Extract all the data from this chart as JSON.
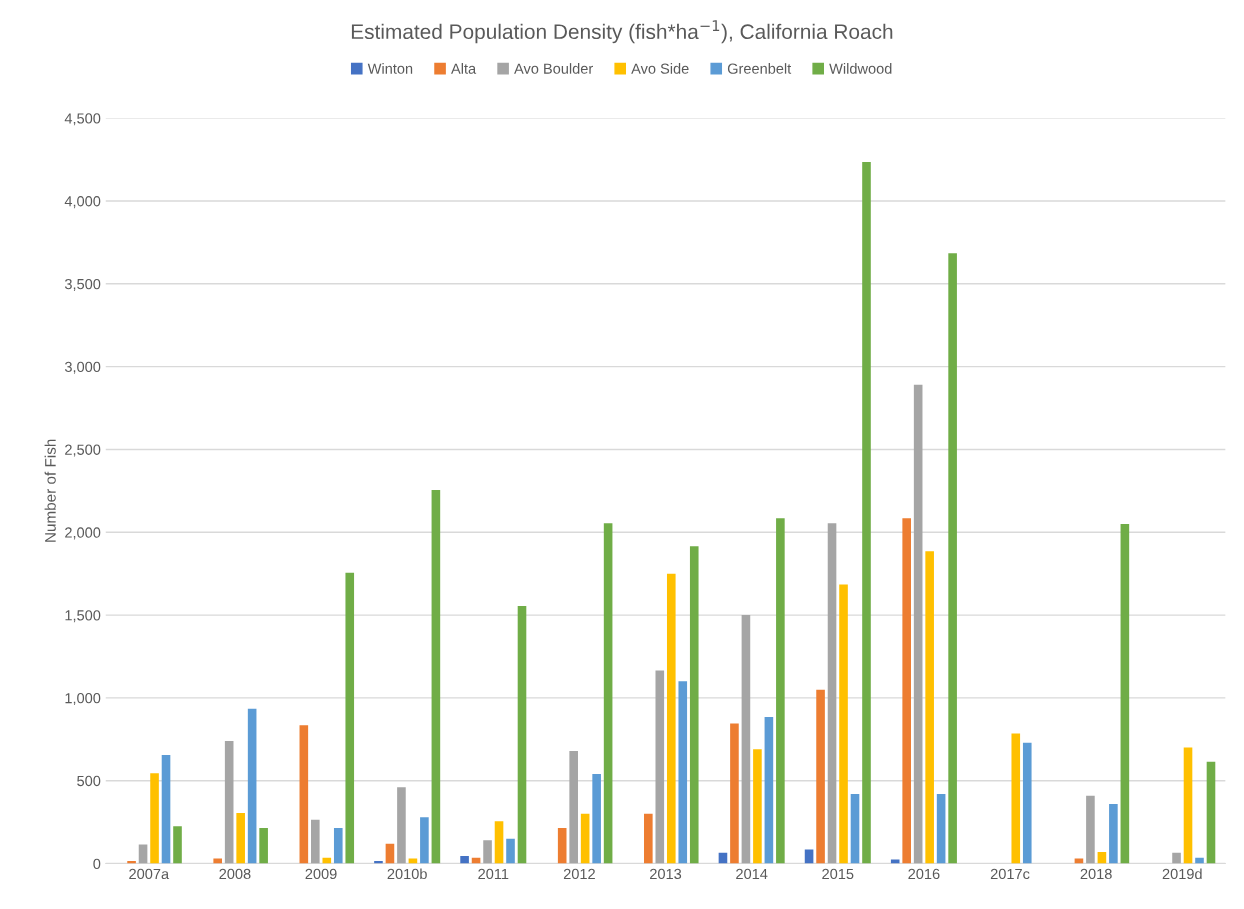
{
  "chart_data": {
    "type": "bar",
    "title": "Estimated Population Density (fish*ha$^{−1}$), California Roach",
    "ylabel": "Number of Fish",
    "categories": [
      "2007a",
      "2008",
      "2009",
      "2010b",
      "2011",
      "2012",
      "2013",
      "2014",
      "2015",
      "2016",
      "2017c",
      "2018",
      "2019d"
    ],
    "series": [
      {
        "name": "Winton",
        "color": "#4472c4",
        "values": [
          null,
          null,
          null,
          15,
          45,
          null,
          null,
          65,
          85,
          25,
          null,
          null,
          null
        ]
      },
      {
        "name": "Alta",
        "color": "#ed7d31",
        "values": [
          15,
          30,
          835,
          120,
          35,
          215,
          300,
          845,
          1050,
          2085,
          null,
          30,
          null
        ]
      },
      {
        "name": "Avo Boulder",
        "color": "#a5a5a5",
        "values": [
          115,
          740,
          265,
          460,
          140,
          680,
          1165,
          1500,
          2055,
          2890,
          null,
          410,
          65
        ]
      },
      {
        "name": "Avo Side",
        "color": "#ffc000",
        "values": [
          545,
          305,
          35,
          30,
          255,
          300,
          1750,
          690,
          1685,
          1885,
          785,
          70,
          700
        ]
      },
      {
        "name": "Greenbelt",
        "color": "#5b9bd5",
        "values": [
          655,
          935,
          215,
          280,
          150,
          540,
          1100,
          885,
          420,
          420,
          730,
          360,
          35
        ]
      },
      {
        "name": "Wildwood",
        "color": "#70ad47",
        "values": [
          225,
          215,
          1755,
          2255,
          1555,
          2055,
          1915,
          2085,
          4235,
          3685,
          null,
          2050,
          615
        ]
      }
    ],
    "ylim": [
      0,
      4500
    ],
    "yticks": [
      0,
      500,
      {
        "value": 1000,
        "label": "1,000"
      },
      {
        "value": 1500,
        "label": "1,500"
      },
      {
        "value": 2000,
        "label": "2,000"
      },
      {
        "value": 2500,
        "label": "2,500"
      },
      {
        "value": 3000,
        "label": "3,000"
      },
      {
        "value": 3500,
        "label": "3,500"
      },
      {
        "value": 4000,
        "label": "4,000"
      },
      {
        "value": 4500,
        "label": "4,500"
      }
    ],
    "grid": "y",
    "legend": "top"
  }
}
